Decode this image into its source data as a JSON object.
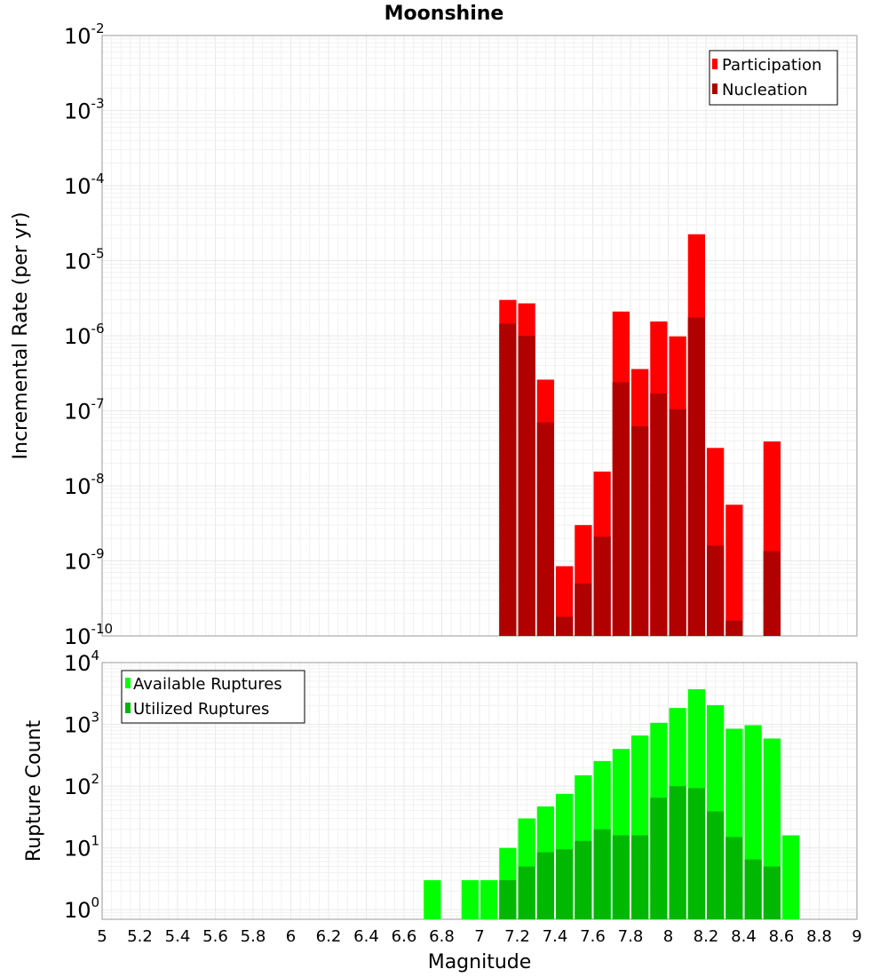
{
  "title": "Moonshine",
  "colors": {
    "participation": "#ff0000",
    "nucleation": "#b00000",
    "available": "#00ff00",
    "utilized": "#00b800"
  },
  "chart_data": [
    {
      "type": "bar",
      "scale": "log",
      "ylabel": "Incremental Rate (per yr)",
      "xlim": [
        5,
        9
      ],
      "ylim": [
        1e-10,
        0.01
      ],
      "y_ticks": [
        {
          "base": "10",
          "exp": "-2"
        },
        {
          "base": "10",
          "exp": "-3"
        },
        {
          "base": "10",
          "exp": "-4"
        },
        {
          "base": "10",
          "exp": "-5"
        },
        {
          "base": "10",
          "exp": "-6"
        },
        {
          "base": "10",
          "exp": "-7"
        },
        {
          "base": "10",
          "exp": "-8"
        },
        {
          "base": "10",
          "exp": "-9"
        },
        {
          "base": "10",
          "exp": "-10"
        }
      ],
      "legend": {
        "position": "top-right",
        "entries": [
          "Participation",
          "Nucleation"
        ]
      },
      "series": [
        {
          "name": "Participation",
          "x": [
            7.15,
            7.25,
            7.35,
            7.45,
            7.55,
            7.65,
            7.75,
            7.85,
            7.95,
            8.05,
            8.15,
            8.25,
            8.35,
            8.55
          ],
          "values": [
            3e-06,
            2.7e-06,
            2.6e-07,
            8.5e-10,
            3e-09,
            1.55e-08,
            2.1e-06,
            3.6e-07,
            1.55e-06,
            9.8e-07,
            2.25e-05,
            3.2e-08,
            5.6e-09,
            3.9e-08
          ]
        },
        {
          "name": "Nucleation",
          "x": [
            7.15,
            7.25,
            7.35,
            7.45,
            7.55,
            7.65,
            7.75,
            7.85,
            7.95,
            8.05,
            8.15,
            8.25,
            8.35,
            8.55
          ],
          "values": [
            1.45e-06,
            1e-06,
            7e-08,
            1.8e-10,
            5e-10,
            2.1e-09,
            2.4e-07,
            6.2e-08,
            1.7e-07,
            1.05e-07,
            1.75e-06,
            1.6e-09,
            1.6e-10,
            1.35e-09
          ]
        }
      ]
    },
    {
      "type": "bar",
      "scale": "log",
      "xlabel": "Magnitude",
      "ylabel": "Rupture Count",
      "xlim": [
        5,
        9
      ],
      "ylim": [
        0.7,
        10000
      ],
      "x_ticks": [
        "5",
        "5.2",
        "5.4",
        "5.6",
        "5.8",
        "6",
        "6.2",
        "6.4",
        "6.6",
        "6.8",
        "7",
        "7.2",
        "7.4",
        "7.6",
        "7.8",
        "8",
        "8.2",
        "8.4",
        "8.6",
        "8.8",
        "9"
      ],
      "y_ticks": [
        {
          "base": "10",
          "exp": "4"
        },
        {
          "base": "10",
          "exp": "3"
        },
        {
          "base": "10",
          "exp": "2"
        },
        {
          "base": "10",
          "exp": "1"
        },
        {
          "base": "10",
          "exp": "0"
        }
      ],
      "legend": {
        "position": "top-left",
        "entries": [
          "Available Ruptures",
          "Utilized Ruptures"
        ]
      },
      "series": [
        {
          "name": "Available Ruptures",
          "x": [
            6.75,
            6.95,
            7.05,
            7.15,
            7.25,
            7.35,
            7.45,
            7.55,
            7.65,
            7.75,
            7.85,
            7.95,
            8.05,
            8.15,
            8.25,
            8.35,
            8.45,
            8.55,
            8.65
          ],
          "values": [
            3,
            3,
            3,
            10,
            30,
            47,
            75,
            150,
            255,
            400,
            660,
            1060,
            1840,
            3700,
            2050,
            850,
            970,
            590,
            16
          ]
        },
        {
          "name": "Utilized Ruptures",
          "x": [
            7.15,
            7.25,
            7.35,
            7.45,
            7.55,
            7.65,
            7.75,
            7.85,
            7.95,
            8.05,
            8.15,
            8.25,
            8.35,
            8.45,
            8.55
          ],
          "values": [
            3,
            5,
            8.5,
            9.5,
            13,
            20,
            16,
            16,
            65,
            100,
            93,
            39,
            15,
            6.5,
            5
          ]
        }
      ]
    }
  ]
}
